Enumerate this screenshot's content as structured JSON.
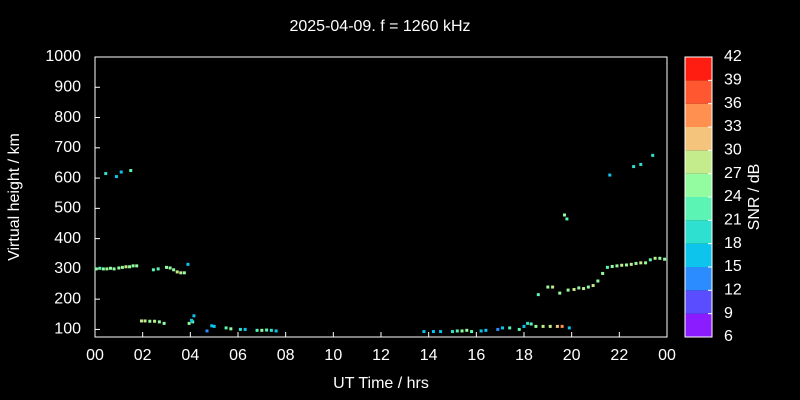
{
  "chart_data": {
    "type": "scatter",
    "title": "2025-04-09. f = 1260 kHz",
    "x_label": "UT Time / hrs",
    "y_label": "Virtual height / km",
    "xlim": [
      0,
      24
    ],
    "xticks": [
      {
        "value": 0,
        "label": "00"
      },
      {
        "value": 2,
        "label": "02"
      },
      {
        "value": 4,
        "label": "04"
      },
      {
        "value": 6,
        "label": "06"
      },
      {
        "value": 8,
        "label": "08"
      },
      10,
      12,
      14,
      16,
      18,
      20,
      22,
      {
        "value": 24,
        "label": "00"
      }
    ],
    "ylim": [
      75,
      1000
    ],
    "yticks": [
      100,
      200,
      300,
      400,
      500,
      600,
      700,
      800,
      900,
      1000
    ],
    "colorbar": {
      "label": "SNR / dB",
      "lim": [
        6,
        42
      ],
      "ticks": [
        6,
        9,
        12,
        15,
        18,
        21,
        24,
        27,
        30,
        33,
        36,
        39,
        42
      ],
      "colors": [
        "#8a1cff",
        "#5a4cff",
        "#2a8cff",
        "#0cc4ec",
        "#2ee0d0",
        "#5cf4b4",
        "#94fca0",
        "#c4ec8c",
        "#f4c47c",
        "#ff9050",
        "#ff5830",
        "#ff1c10"
      ]
    },
    "series": [
      {
        "x": [
          0.05,
          0.2,
          0.35,
          0.5,
          0.65,
          0.8,
          1.0,
          1.15,
          1.3,
          1.45,
          1.6,
          1.75,
          0.45,
          0.9,
          1.1,
          1.5,
          2.45,
          2.65,
          3.0,
          3.15,
          3.3,
          3.45,
          3.6,
          3.75,
          3.9,
          1.95,
          2.1,
          2.3,
          2.5,
          2.7,
          2.9,
          3.95,
          4.1,
          4.15,
          4.05,
          4.7,
          4.9,
          5.0,
          5.5,
          5.7,
          6.1,
          6.3,
          6.8,
          7.0,
          7.2,
          7.4,
          7.6,
          13.8,
          14.2,
          14.5,
          15.0,
          15.2,
          15.4,
          15.6,
          15.8,
          16.2,
          16.4,
          16.9,
          17.1,
          17.4,
          17.8,
          18.0,
          18.15,
          18.3,
          18.5,
          18.8,
          19.1,
          19.4,
          19.6,
          19.9,
          18.6,
          19.0,
          19.2,
          19.5,
          19.7,
          19.8,
          19.85,
          20.1,
          20.3,
          20.5,
          20.7,
          20.9,
          21.1,
          21.3,
          21.5,
          21.7,
          21.9,
          22.1,
          22.3,
          22.5,
          22.7,
          22.9,
          23.1,
          23.3,
          23.5,
          23.7,
          23.9,
          21.6,
          22.6,
          22.9,
          23.4
        ],
        "values": [
          300,
          302,
          300,
          300,
          302,
          300,
          303,
          305,
          307,
          307,
          310,
          310,
          615,
          605,
          620,
          625,
          297,
          300,
          305,
          303,
          297,
          290,
          287,
          287,
          315,
          128,
          128,
          127,
          127,
          125,
          120,
          120,
          125,
          145,
          130,
          95,
          112,
          110,
          105,
          102,
          100,
          100,
          97,
          97,
          98,
          97,
          95,
          93,
          93,
          93,
          93,
          95,
          95,
          97,
          93,
          95,
          97,
          100,
          105,
          105,
          100,
          110,
          120,
          118,
          110,
          110,
          110,
          110,
          110,
          105,
          215,
          240,
          240,
          220,
          478,
          465,
          230,
          232,
          237,
          235,
          240,
          245,
          260,
          285,
          305,
          308,
          310,
          312,
          313,
          315,
          318,
          320,
          320,
          330,
          335,
          335,
          332,
          610,
          638,
          645,
          675
        ],
        "snr": [
          24,
          21,
          24,
          24,
          24,
          24,
          24,
          24,
          27,
          24,
          24,
          24,
          18,
          15,
          15,
          21,
          21,
          21,
          24,
          24,
          24,
          27,
          27,
          24,
          15,
          27,
          27,
          24,
          27,
          24,
          24,
          24,
          21,
          15,
          15,
          12,
          15,
          15,
          21,
          24,
          18,
          15,
          21,
          24,
          21,
          18,
          15,
          15,
          15,
          15,
          18,
          21,
          24,
          24,
          21,
          15,
          15,
          12,
          15,
          21,
          21,
          15,
          18,
          21,
          24,
          27,
          27,
          30,
          33,
          15,
          21,
          24,
          27,
          24,
          24,
          21,
          24,
          27,
          24,
          27,
          24,
          27,
          24,
          24,
          21,
          24,
          24,
          27,
          24,
          27,
          24,
          27,
          24,
          21,
          27,
          24,
          24,
          15,
          18,
          18,
          18
        ]
      }
    ]
  }
}
